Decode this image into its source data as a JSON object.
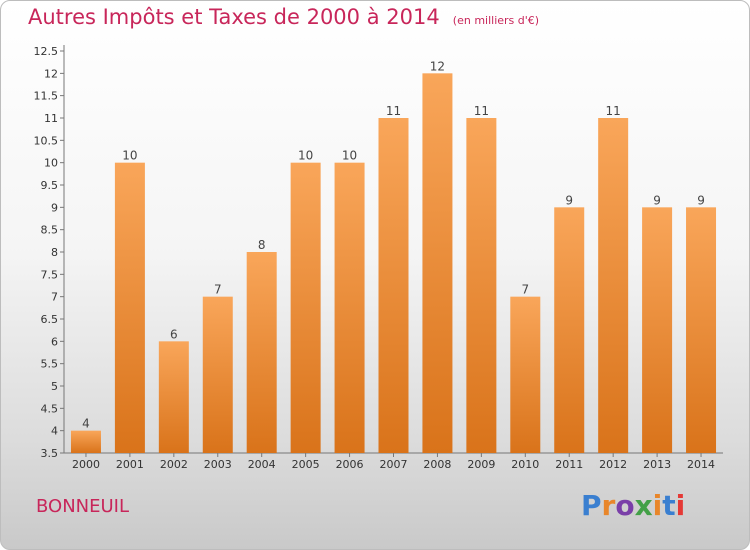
{
  "title": "Autres Impôts et Taxes de 2000 à 2014",
  "subtitle": "(en milliers d'€)",
  "place": "BONNEUIL",
  "logo": {
    "text": "Proxiti",
    "colors": [
      "#3a7fd0",
      "#e8862a",
      "#7a3fa8",
      "#43a047",
      "#e8862a",
      "#3a7fd0",
      "#e53935"
    ]
  },
  "colors": {
    "bar_light": "#f9a65a",
    "bar_dark": "#d9731a",
    "title": "#c8265a"
  },
  "chart_data": {
    "type": "bar",
    "categories": [
      "2000",
      "2001",
      "2002",
      "2003",
      "2004",
      "2005",
      "2006",
      "2007",
      "2008",
      "2009",
      "2010",
      "2011",
      "2012",
      "2013",
      "2014"
    ],
    "values": [
      4,
      10,
      6,
      7,
      8,
      10,
      10,
      11,
      12,
      11,
      7,
      9,
      11,
      9,
      9
    ],
    "data_labels": [
      "4",
      "10",
      "6",
      "7",
      "8",
      "10",
      "10",
      "11",
      "12",
      "11",
      "7",
      "9",
      "11",
      "9",
      "9"
    ],
    "ylim": [
      3.5,
      12.5
    ],
    "yticks": [
      "3.5",
      "4",
      "4.5",
      "5",
      "5.5",
      "6",
      "6.5",
      "7",
      "7.5",
      "8",
      "8.5",
      "9",
      "9.5",
      "10",
      "10.5",
      "11",
      "11.5",
      "12",
      "12.5"
    ],
    "xlabel": "",
    "ylabel": "",
    "grid": false
  }
}
